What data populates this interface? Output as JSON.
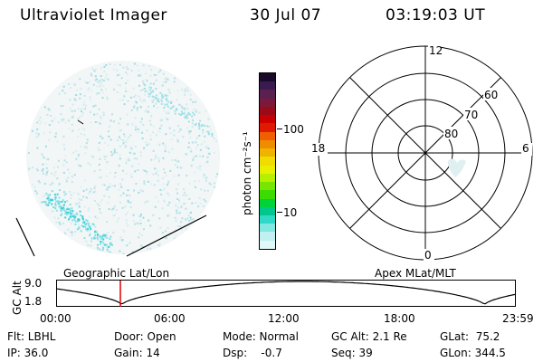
{
  "header": {
    "instrument": "Ultraviolet Imager",
    "date": "30 Jul 07",
    "time": "03:19:03 UT"
  },
  "colorbar": {
    "label": "photon cm⁻²s⁻¹",
    "ticks": [
      "100",
      "10"
    ],
    "colors": [
      "#1a0a2a",
      "#3b1a4f",
      "#5a2050",
      "#7a1a3a",
      "#9a0a18",
      "#c80000",
      "#e01a00",
      "#f06000",
      "#f08c00",
      "#f0b400",
      "#f0dc00",
      "#e8f000",
      "#b4f000",
      "#78e600",
      "#3cdc00",
      "#00d23c",
      "#00c88c",
      "#30d8c8",
      "#80e8e0",
      "#c0f0f0",
      "#e0f8f8"
    ]
  },
  "polar": {
    "mlt": {
      "top": "12",
      "bottom": "0",
      "left": "18",
      "right": "6"
    },
    "lat": [
      "60",
      "70",
      "80"
    ]
  },
  "plot": {
    "left_label": "Geographic Lat/Lon",
    "right_label": "Apex MLat/MLT",
    "y_axis_label": "GC Alt",
    "y_ticks": [
      "9.0",
      "1.8"
    ],
    "x_ticks": [
      "00:00",
      "06:00",
      "12:00",
      "18:00",
      "23:59"
    ]
  },
  "info": {
    "flt": "Flt: LBHL",
    "ip": "IP: 36.0",
    "door": "Door: Open",
    "gain": "Gain: 14",
    "mode": "Mode: Normal",
    "dsp": "Dsp:    -0.7",
    "gcalt": "GC Alt: 2.1 Re",
    "seq": "Seq: 39",
    "glat": "GLat:  75.2",
    "glon": "GLon: 344.5"
  },
  "cursor_time_hours": 3.32
}
